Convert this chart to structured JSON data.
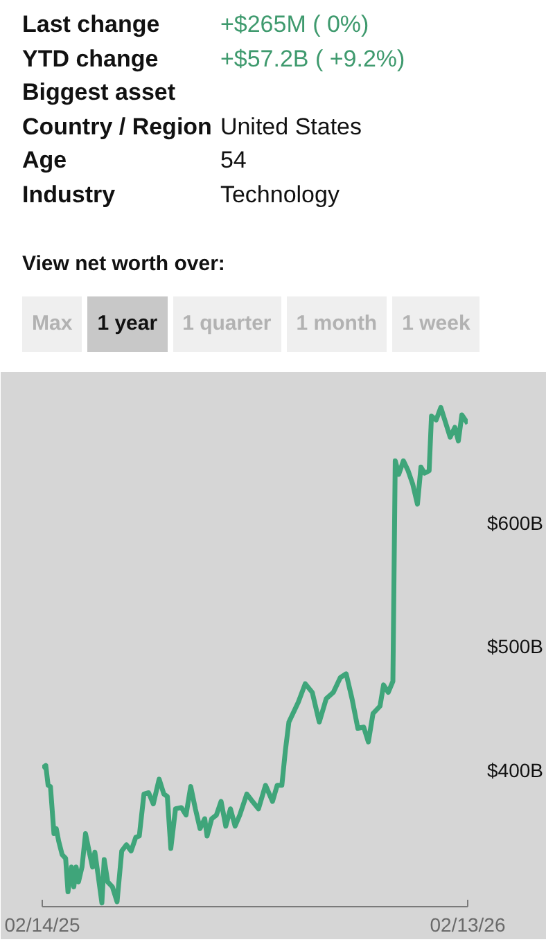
{
  "chart_data": {
    "type": "line",
    "title": "View net worth over:",
    "annotations": [
      "Last change",
      "+$265M ( 0%)",
      "YTD change",
      "+$57.2B ( +9.2%)",
      "Biggest asset",
      "Country / Region",
      "United States",
      "Age",
      "54",
      "Industry",
      "Technology",
      "Max",
      "1 year",
      "1 quarter",
      "1 month",
      "1 week"
    ],
    "x": [
      "2025-02-14",
      "2025-02-17",
      "2025-02-19",
      "2025-02-21",
      "2025-02-24",
      "2025-02-26",
      "2025-02-28",
      "2025-03-03",
      "2025-03-06",
      "2025-03-08",
      "2025-03-11",
      "2025-03-13",
      "2025-03-15",
      "2025-03-17",
      "2025-03-20",
      "2025-03-23",
      "2025-03-26",
      "2025-03-29",
      "2025-03-31",
      "2025-04-03",
      "2025-04-06",
      "2025-04-08",
      "2025-04-11",
      "2025-04-15",
      "2025-04-19",
      "2025-04-23",
      "2025-04-27",
      "2025-05-01",
      "2025-05-05",
      "2025-05-08",
      "2025-05-12",
      "2025-05-16",
      "2025-05-20",
      "2025-05-25",
      "2025-05-29",
      "2025-06-01",
      "2025-06-04",
      "2025-06-08",
      "2025-06-13",
      "2025-06-17",
      "2025-06-21",
      "2025-06-25",
      "2025-06-29",
      "2025-07-03",
      "2025-07-05",
      "2025-07-09",
      "2025-07-13",
      "2025-07-17",
      "2025-07-21",
      "2025-07-25",
      "2025-07-29",
      "2025-08-02",
      "2025-08-08",
      "2025-08-12",
      "2025-08-18",
      "2025-08-24",
      "2025-08-30",
      "2025-09-03",
      "2025-09-07",
      "2025-09-10",
      "2025-09-13",
      "2025-09-17",
      "2025-09-21",
      "2025-09-27",
      "2025-10-03",
      "2025-10-09",
      "2025-10-15",
      "2025-10-21",
      "2025-10-27",
      "2025-11-01",
      "2025-11-06",
      "2025-11-11",
      "2025-11-16",
      "2025-11-20",
      "2025-11-24",
      "2025-11-30",
      "2025-12-03",
      "2025-12-07",
      "2025-12-11",
      "2025-12-13",
      "2025-12-16",
      "2025-12-20",
      "2025-12-24",
      "2025-12-28",
      "2026-01-01",
      "2026-01-04",
      "2026-01-07",
      "2026-01-11",
      "2026-01-13",
      "2026-01-17",
      "2026-01-21",
      "2026-01-25",
      "2026-01-29",
      "2026-02-02",
      "2026-02-05",
      "2026-02-08",
      "2026-02-13"
    ],
    "series": [
      {
        "color": "#3fa57a",
        "values": [
          402,
          404,
          388,
          387,
          349,
          353,
          343,
          332,
          329,
          302,
          322,
          306,
          322,
          310,
          322,
          349,
          335,
          322,
          334,
          314,
          293,
          328,
          310,
          306,
          294,
          335,
          340,
          335,
          346,
          347,
          381,
          382,
          373,
          393,
          381,
          379,
          337,
          369,
          370,
          364,
          387,
          369,
          353,
          361,
          347,
          361,
          364,
          375,
          355,
          369,
          355,
          364,
          381,
          376,
          369,
          388,
          375,
          388,
          388,
          416,
          439,
          447,
          455,
          470,
          463,
          439,
          458,
          463,
          475,
          478,
          458,
          434,
          435,
          423,
          446,
          452,
          469,
          463,
          472,
          650,
          639,
          650,
          642,
          631,
          615,
          645,
          640,
          642,
          686,
          683,
          693,
          681,
          669,
          677,
          666,
          687,
          680
        ]
      }
    ],
    "xlim": [
      "2025-02-14",
      "2026-02-13"
    ],
    "xticks": [
      {
        "value": "2025-02-14",
        "label": "02/14/25"
      },
      {
        "value": "2026-02-13",
        "label": "02/13/26"
      }
    ],
    "ylim": [
      290,
      715
    ],
    "yticks": [
      {
        "value": 400,
        "label": "$400B"
      },
      {
        "value": 500,
        "label": "$500B"
      },
      {
        "value": 600,
        "label": "$600B"
      }
    ],
    "grid": false,
    "marker": "none",
    "line_style": "solid"
  }
}
